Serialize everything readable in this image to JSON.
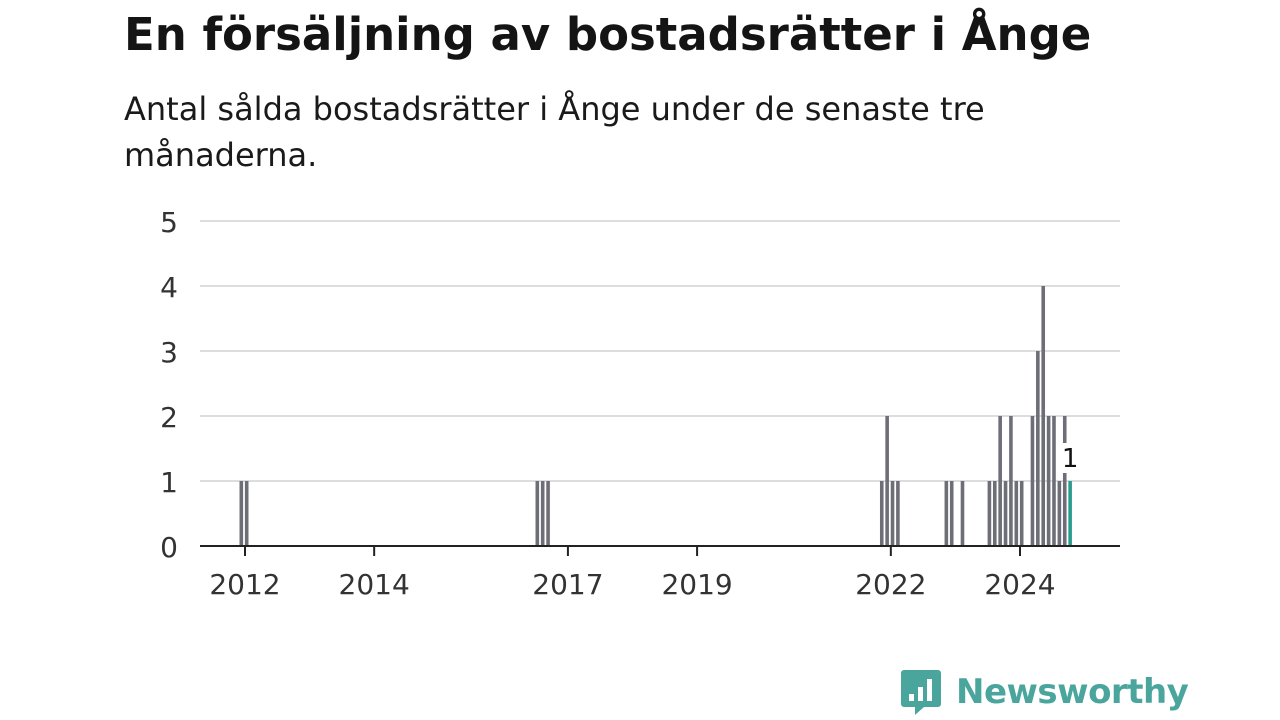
{
  "chart_data": {
    "type": "bar",
    "title": "En försäljning av bostadsrätter i Ånge",
    "subtitle": "Antal sålda bostadsrätter i Ånge under de senaste tre månaderna.",
    "xlabel": "",
    "ylabel": "",
    "ylim": [
      0,
      5
    ],
    "yticks": [
      0,
      1,
      2,
      3,
      4,
      5
    ],
    "xticks": [
      "2012",
      "2014",
      "2017",
      "2019",
      "2022",
      "2024"
    ],
    "grid": true,
    "colors": {
      "bar": "#6e6e78",
      "highlight": "#2a9d8f",
      "grid": "#dddddd",
      "axis": "#222222"
    },
    "series": [
      {
        "values": [
          {
            "date": "2011-12",
            "value": 1
          },
          {
            "date": "2012-01",
            "value": 1
          },
          {
            "date": "2016-07",
            "value": 1
          },
          {
            "date": "2016-08",
            "value": 1
          },
          {
            "date": "2016-09",
            "value": 1
          },
          {
            "date": "2021-11",
            "value": 1
          },
          {
            "date": "2021-12",
            "value": 2
          },
          {
            "date": "2022-01",
            "value": 1
          },
          {
            "date": "2022-02",
            "value": 1
          },
          {
            "date": "2022-11",
            "value": 1
          },
          {
            "date": "2022-12",
            "value": 1
          },
          {
            "date": "2023-02",
            "value": 1
          },
          {
            "date": "2023-07",
            "value": 1
          },
          {
            "date": "2023-08",
            "value": 1
          },
          {
            "date": "2023-09",
            "value": 2
          },
          {
            "date": "2023-10",
            "value": 1
          },
          {
            "date": "2023-11",
            "value": 2
          },
          {
            "date": "2023-12",
            "value": 1
          },
          {
            "date": "2024-01",
            "value": 1
          },
          {
            "date": "2024-03",
            "value": 2
          },
          {
            "date": "2024-04",
            "value": 3
          },
          {
            "date": "2024-05",
            "value": 4
          },
          {
            "date": "2024-06",
            "value": 2
          },
          {
            "date": "2024-07",
            "value": 2
          },
          {
            "date": "2024-08",
            "value": 1
          },
          {
            "date": "2024-09",
            "value": 2
          },
          {
            "date": "2024-10",
            "value": 1
          }
        ]
      }
    ],
    "highlight": {
      "date": "2024-10",
      "value": 1,
      "label": "1"
    }
  },
  "brand": {
    "name": "Newsworthy",
    "color": "#4aa59d",
    "icon": "newsworthy-logo-icon"
  }
}
